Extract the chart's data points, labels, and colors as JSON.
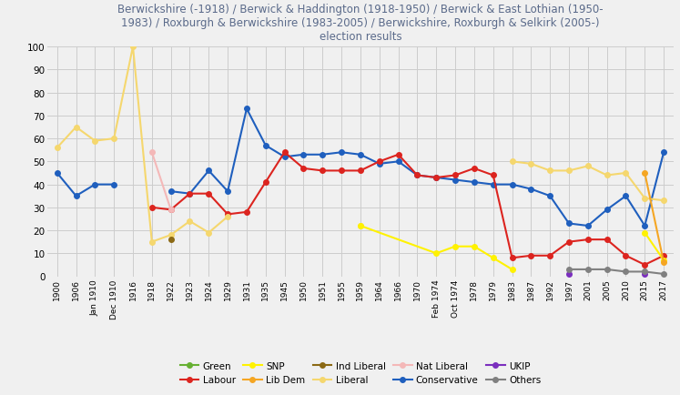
{
  "title": "Berwickshire (-1918) / Berwick & Haddington (1918-1950) / Berwick & East Lothian (1950-\n1983) / Roxburgh & Berwickshire (1983-2005) / Berwickshire, Roxburgh & Selkirk (2005-)\nelection results",
  "xlabels": [
    "1900",
    "1906",
    "Jan 1910",
    "Dec 1910",
    "1916",
    "1918",
    "1922",
    "1923",
    "1924",
    "1929",
    "1931",
    "1935",
    "1945",
    "1950",
    "1951",
    "1955",
    "1959",
    "1964",
    "1966",
    "1970",
    "Feb 1974",
    "Oct 1974",
    "1978",
    "1979",
    "1983",
    "1987",
    "1992",
    "1997",
    "2001",
    "2005",
    "2010",
    "2015",
    "2017"
  ],
  "series": {
    "Conservative": {
      "color": "#1f5fbe",
      "data": [
        [
          0,
          45
        ],
        [
          1,
          35
        ],
        [
          2,
          40
        ],
        [
          3,
          40
        ],
        [
          5,
          null
        ],
        [
          6,
          37
        ],
        [
          7,
          36
        ],
        [
          8,
          46
        ],
        [
          9,
          37
        ],
        [
          10,
          73
        ],
        [
          11,
          57
        ],
        [
          12,
          52
        ],
        [
          13,
          53
        ],
        [
          14,
          53
        ],
        [
          15,
          54
        ],
        [
          16,
          53
        ],
        [
          17,
          49
        ],
        [
          18,
          50
        ],
        [
          19,
          44
        ],
        [
          20,
          43
        ],
        [
          21,
          42
        ],
        [
          22,
          41
        ],
        [
          23,
          40
        ],
        [
          24,
          40
        ],
        [
          25,
          38
        ],
        [
          26,
          35
        ],
        [
          27,
          23
        ],
        [
          28,
          22
        ],
        [
          29,
          29
        ],
        [
          30,
          35
        ],
        [
          31,
          22
        ],
        [
          32,
          54
        ]
      ]
    },
    "Labour": {
      "color": "#dc241f",
      "data": [
        [
          5,
          30
        ],
        [
          6,
          29
        ],
        [
          7,
          36
        ],
        [
          8,
          36
        ],
        [
          9,
          27
        ],
        [
          10,
          28
        ],
        [
          11,
          41
        ],
        [
          12,
          54
        ],
        [
          13,
          47
        ],
        [
          14,
          46
        ],
        [
          15,
          46
        ],
        [
          16,
          46
        ],
        [
          17,
          50
        ],
        [
          18,
          53
        ],
        [
          19,
          44
        ],
        [
          20,
          43
        ],
        [
          21,
          44
        ],
        [
          22,
          47
        ],
        [
          23,
          44
        ],
        [
          24,
          8
        ],
        [
          25,
          9
        ],
        [
          26,
          9
        ],
        [
          27,
          15
        ],
        [
          28,
          16
        ],
        [
          29,
          16
        ],
        [
          30,
          9
        ],
        [
          31,
          5
        ],
        [
          32,
          9
        ]
      ]
    },
    "Liberal": {
      "color": "#f5d76e",
      "data": [
        [
          0,
          56
        ],
        [
          1,
          65
        ],
        [
          2,
          59
        ],
        [
          3,
          60
        ],
        [
          4,
          100
        ],
        [
          5,
          15
        ],
        [
          6,
          18
        ],
        [
          7,
          24
        ],
        [
          8,
          19
        ],
        [
          9,
          26
        ],
        [
          10,
          null
        ],
        [
          11,
          null
        ],
        [
          12,
          null
        ],
        [
          13,
          null
        ],
        [
          14,
          null
        ],
        [
          15,
          null
        ],
        [
          16,
          22
        ],
        [
          17,
          null
        ],
        [
          18,
          null
        ],
        [
          19,
          null
        ],
        [
          20,
          null
        ],
        [
          21,
          null
        ],
        [
          22,
          null
        ],
        [
          23,
          null
        ],
        [
          24,
          50
        ],
        [
          25,
          49
        ],
        [
          26,
          46
        ],
        [
          27,
          46
        ],
        [
          28,
          48
        ],
        [
          29,
          44
        ],
        [
          30,
          45
        ],
        [
          31,
          34
        ],
        [
          32,
          33
        ]
      ]
    },
    "Nat Liberal": {
      "color": "#f4b8b8",
      "data": [
        [
          5,
          54
        ],
        [
          6,
          29
        ]
      ]
    },
    "SNP": {
      "color": "#FFF200",
      "data": [
        [
          16,
          22
        ],
        [
          20,
          10
        ],
        [
          21,
          13
        ],
        [
          22,
          13
        ],
        [
          23,
          8
        ],
        [
          24,
          3
        ],
        [
          25,
          null
        ],
        [
          26,
          null
        ],
        [
          27,
          null
        ],
        [
          28,
          null
        ],
        [
          29,
          null
        ],
        [
          30,
          null
        ],
        [
          31,
          19
        ],
        [
          32,
          7
        ]
      ]
    },
    "Lib Dem": {
      "color": "#f5a623",
      "data": [
        [
          26,
          null
        ],
        [
          27,
          null
        ],
        [
          28,
          null
        ],
        [
          29,
          null
        ],
        [
          30,
          null
        ],
        [
          31,
          45
        ],
        [
          32,
          6
        ]
      ]
    },
    "Ind Liberal": {
      "color": "#8B6914",
      "data": [
        [
          6,
          16
        ]
      ]
    },
    "UKIP": {
      "color": "#7b2fbe",
      "data": [
        [
          27,
          1
        ],
        [
          28,
          null
        ],
        [
          29,
          null
        ],
        [
          30,
          null
        ],
        [
          31,
          1
        ],
        [
          32,
          null
        ]
      ]
    },
    "Others": {
      "color": "#808080",
      "data": [
        [
          27,
          3
        ],
        [
          28,
          3
        ],
        [
          29,
          3
        ],
        [
          30,
          2
        ],
        [
          31,
          2
        ],
        [
          32,
          1
        ]
      ]
    },
    "Green": {
      "color": "#66b032",
      "data": []
    }
  },
  "ylim": [
    0,
    100
  ],
  "yticks": [
    0,
    10,
    20,
    30,
    40,
    50,
    60,
    70,
    80,
    90,
    100
  ],
  "grid_color": "#cccccc",
  "bg_color": "#f0f0f0",
  "title_color": "#5a6a8a",
  "legend_row1": [
    "Green",
    "Labour",
    "SNP",
    "Lib Dem",
    "Ind Liberal"
  ],
  "legend_row2": [
    "Liberal",
    "Nat Liberal",
    "Conservative",
    "UKIP",
    "Others"
  ]
}
